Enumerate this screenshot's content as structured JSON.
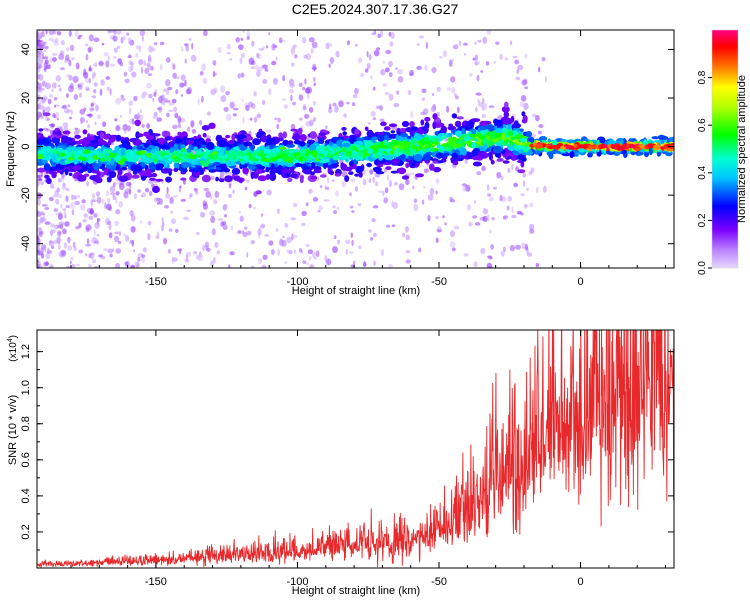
{
  "title": "C2E5.2024.307.17.36.G27",
  "chart_data": [
    {
      "type": "heatmap",
      "xlabel": "Height of straight line (km)",
      "ylabel": "Frequency (Hz)",
      "xlim": [
        -192,
        33
      ],
      "ylim": [
        -50,
        48
      ],
      "xticks": [
        -150,
        -100,
        -50,
        0
      ],
      "xtick_labels": [
        "-150",
        "-100",
        "-50",
        "0"
      ],
      "yticks": [
        -40,
        -20,
        0,
        20,
        40
      ],
      "ytick_labels": [
        "-40",
        "-20",
        "0",
        "20",
        "40"
      ],
      "trace": {
        "x": [
          -190,
          -170,
          -150,
          -130,
          -110,
          -90,
          -70,
          -50,
          -35,
          -25,
          -20,
          -10,
          0,
          10,
          20,
          33
        ],
        "center_hz": [
          -3,
          -4,
          -4,
          -4,
          -4,
          -3,
          -1,
          1,
          3,
          4,
          1,
          0,
          0,
          0,
          0,
          0
        ]
      },
      "colorbar": {
        "label": "Normalized spectral amplitude",
        "range": [
          0,
          1
        ],
        "ticks": [
          0.0,
          0.2,
          0.4,
          0.6,
          0.8
        ],
        "tick_labels": [
          "0.0",
          "0.2",
          "0.4",
          "0.6",
          "0.8"
        ]
      },
      "grid": false
    },
    {
      "type": "line",
      "xlabel": "Height of straight line (km)",
      "ylabel": "SNR (10 * v/v)",
      "y_multiplier": "(x10",
      "y_multiplier_exp": "4",
      "xlim": [
        -192,
        33
      ],
      "ylim": [
        0,
        1.32
      ],
      "xticks": [
        -150,
        -100,
        -50,
        0
      ],
      "xtick_labels": [
        "-150",
        "-100",
        "-50",
        "0"
      ],
      "yticks": [
        0.2,
        0.4,
        0.6,
        0.8,
        1.0,
        1.2
      ],
      "ytick_labels": [
        "0.2",
        "0.4",
        "0.6",
        "0.8",
        "1.0",
        "1.2"
      ],
      "series": [
        {
          "color": "#e8282a",
          "x": [
            -192,
            -180,
            -170,
            -160,
            -150,
            -140,
            -130,
            -120,
            -110,
            -100,
            -90,
            -80,
            -70,
            -60,
            -50,
            -45,
            -40,
            -35,
            -30,
            -25,
            -20,
            -15,
            -10,
            -5,
            0,
            5,
            10,
            15,
            20,
            25,
            33
          ],
          "y": [
            0.02,
            0.02,
            0.03,
            0.04,
            0.04,
            0.05,
            0.06,
            0.07,
            0.08,
            0.09,
            0.1,
            0.12,
            0.14,
            0.16,
            0.2,
            0.25,
            0.32,
            0.4,
            0.48,
            0.55,
            0.6,
            0.68,
            0.75,
            0.8,
            0.82,
            0.88,
            0.92,
            0.98,
            1.02,
            1.05,
            1.08
          ]
        }
      ],
      "grid": false
    }
  ]
}
